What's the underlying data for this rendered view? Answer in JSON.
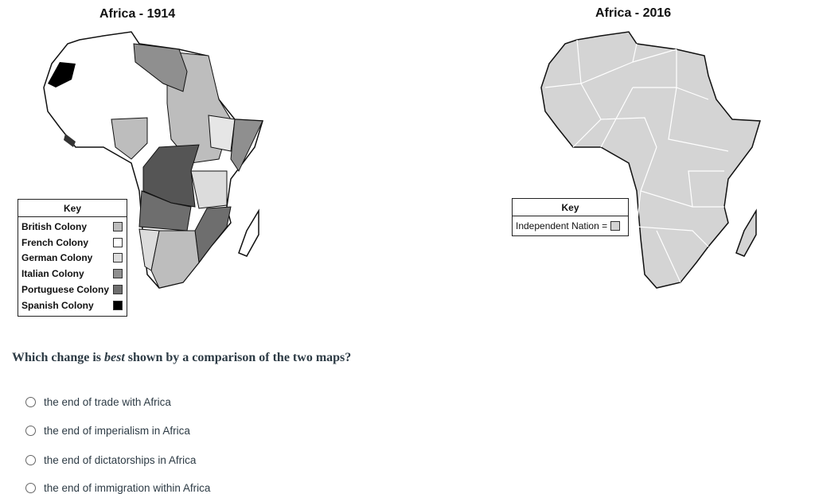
{
  "map1914": {
    "title": "Africa - 1914",
    "key": {
      "heading": "Key",
      "items": [
        {
          "label": "British Colony",
          "color": "#bdbdbd"
        },
        {
          "label": "French Colony",
          "color": "#ffffff"
        },
        {
          "label": "German Colony",
          "color": "#dcdcdc"
        },
        {
          "label": "Italian Colony",
          "color": "#8f8f8f"
        },
        {
          "label": "Portuguese Colony",
          "color": "#6e6e6e"
        },
        {
          "label": "Spanish Colony",
          "color": "#000000"
        }
      ]
    }
  },
  "map2016": {
    "title": "Africa - 2016",
    "key": {
      "heading": "Key",
      "items": [
        {
          "label": "Independent Nation =",
          "color": "#d4d4d4"
        }
      ]
    }
  },
  "question": {
    "prefix": "Which change is ",
    "emphasis": "best",
    "suffix": " shown by a comparison of the two maps?",
    "options": [
      "the end of trade with Africa",
      "the end of imperialism in Africa",
      "the end of dictatorships in Africa",
      "the end of immigration within Africa"
    ]
  }
}
